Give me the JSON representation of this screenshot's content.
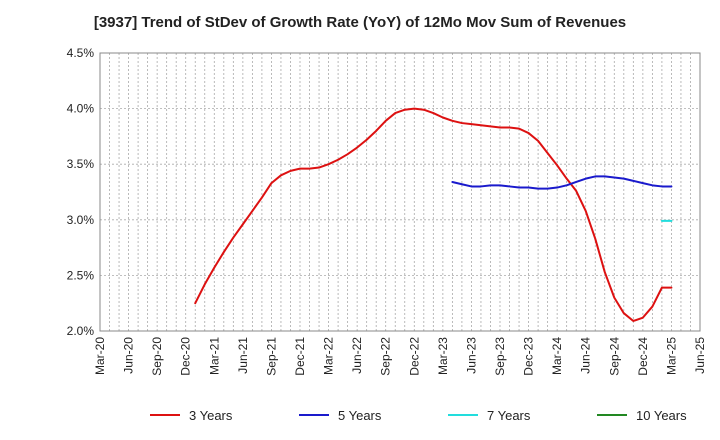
{
  "chart_data": {
    "type": "line",
    "title": "[3937]  Trend of StDev of Growth Rate (YoY) of 12Mo Mov Sum of Revenues",
    "xlabel": "",
    "ylabel": "",
    "ylim": [
      2.0,
      4.5
    ],
    "y_ticks": [
      2.0,
      2.5,
      3.0,
      3.5,
      4.0,
      4.5
    ],
    "y_tick_labels": [
      "2.0%",
      "2.5%",
      "3.0%",
      "3.5%",
      "4.0%",
      "4.5%"
    ],
    "x_tick_labels": [
      "Mar-20",
      "Jun-20",
      "Sep-20",
      "Dec-20",
      "Mar-21",
      "Jun-21",
      "Sep-21",
      "Dec-21",
      "Mar-22",
      "Jun-22",
      "Sep-22",
      "Dec-22",
      "Mar-23",
      "Jun-23",
      "Sep-23",
      "Dec-23",
      "Mar-24",
      "Jun-24",
      "Sep-24",
      "Dec-24",
      "Mar-25",
      "Jun-25"
    ],
    "x_range_months": [
      0,
      63
    ],
    "grid": true,
    "legend_position": "bottom",
    "series": [
      {
        "name": "3 Years",
        "color": "#dd1111",
        "x": [
          10,
          11,
          12,
          13,
          14,
          15,
          16,
          17,
          18,
          19,
          20,
          21,
          22,
          23,
          24,
          25,
          26,
          27,
          28,
          29,
          30,
          31,
          32,
          33,
          34,
          35,
          36,
          37,
          38,
          39,
          40,
          41,
          42,
          43,
          44,
          45,
          46,
          47,
          48,
          49,
          50,
          51,
          52,
          53,
          54,
          55,
          56,
          57,
          58,
          59,
          60
        ],
        "values": [
          2.25,
          2.42,
          2.57,
          2.71,
          2.84,
          2.96,
          3.08,
          3.2,
          3.33,
          3.4,
          3.44,
          3.46,
          3.46,
          3.47,
          3.5,
          3.54,
          3.59,
          3.65,
          3.72,
          3.8,
          3.89,
          3.96,
          3.99,
          4.0,
          3.99,
          3.96,
          3.92,
          3.89,
          3.87,
          3.86,
          3.85,
          3.84,
          3.83,
          3.83,
          3.82,
          3.78,
          3.71,
          3.6,
          3.49,
          3.37,
          3.26,
          3.08,
          2.83,
          2.53,
          2.3,
          2.16,
          2.09,
          2.12,
          2.22,
          2.39,
          2.39
        ]
      },
      {
        "name": "5 Years",
        "color": "#1a1acc",
        "x": [
          37,
          38,
          39,
          40,
          41,
          42,
          43,
          44,
          45,
          46,
          47,
          48,
          49,
          50,
          51,
          52,
          53,
          54,
          55,
          56,
          57,
          58,
          59,
          60
        ],
        "values": [
          3.34,
          3.32,
          3.3,
          3.3,
          3.31,
          3.31,
          3.3,
          3.29,
          3.29,
          3.28,
          3.28,
          3.29,
          3.31,
          3.34,
          3.37,
          3.39,
          3.39,
          3.38,
          3.37,
          3.35,
          3.33,
          3.31,
          3.3,
          3.3
        ]
      },
      {
        "name": "7 Years",
        "color": "#22dddd",
        "x": [
          59,
          60
        ],
        "values": [
          2.99,
          2.99
        ]
      },
      {
        "name": "10 Years",
        "color": "#228822",
        "x": [],
        "values": []
      }
    ]
  }
}
